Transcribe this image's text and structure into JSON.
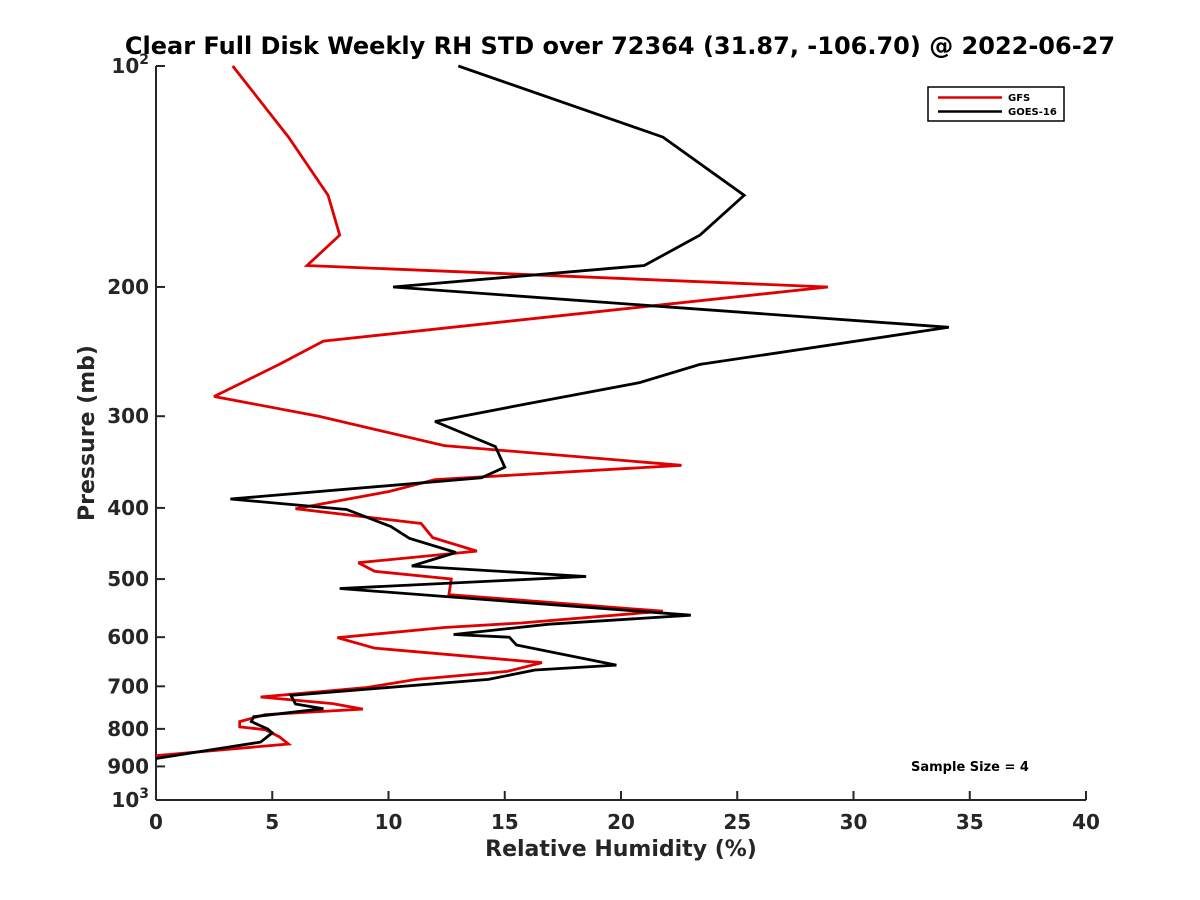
{
  "chart_data": {
    "type": "line",
    "title": "Clear Full Disk Weekly RH STD over 72364 (31.87, -106.70) @ 2022-06-27",
    "xlabel": "Relative Humidity (%)",
    "ylabel": "Pressure (mb)",
    "xlim": [
      0,
      40
    ],
    "ylim": [
      100,
      1000
    ],
    "y_scale": "log",
    "y_reversed": true,
    "grid": false,
    "legend_position": "top-right",
    "x_ticks": [
      "0",
      "5",
      "10",
      "15",
      "20",
      "25",
      "30",
      "35",
      "40"
    ],
    "y_ticks": [
      {
        "value": 100,
        "base": "10",
        "exp": "2"
      },
      {
        "value": 200,
        "label": "200"
      },
      {
        "value": 300,
        "label": "300"
      },
      {
        "value": 400,
        "label": "400"
      },
      {
        "value": 500,
        "label": "500"
      },
      {
        "value": 600,
        "label": "600"
      },
      {
        "value": 700,
        "label": "700"
      },
      {
        "value": 800,
        "label": "800"
      },
      {
        "value": 900,
        "label": "900"
      },
      {
        "value": 1000,
        "base": "10",
        "exp": "3"
      }
    ],
    "annotation": "Sample Size = 4",
    "series": [
      {
        "name": "GFS",
        "color": "#e00000",
        "points": [
          [
            3.3,
            100
          ],
          [
            5.7,
            125
          ],
          [
            7.4,
            150
          ],
          [
            7.9,
            170
          ],
          [
            6.5,
            187
          ],
          [
            28.9,
            200
          ],
          [
            7.2,
            237
          ],
          [
            5.3,
            255
          ],
          [
            2.5,
            282
          ],
          [
            7.0,
            300
          ],
          [
            12.4,
            329
          ],
          [
            22.6,
            350
          ],
          [
            12.0,
            366
          ],
          [
            10.0,
            380
          ],
          [
            6.0,
            401
          ],
          [
            11.4,
            420
          ],
          [
            11.9,
            439
          ],
          [
            13.8,
            458
          ],
          [
            8.7,
            475
          ],
          [
            9.4,
            488
          ],
          [
            12.7,
            500
          ],
          [
            12.6,
            525
          ],
          [
            21.8,
            553
          ],
          [
            15.7,
            574
          ],
          [
            12.4,
            582
          ],
          [
            7.8,
            601
          ],
          [
            9.4,
            621
          ],
          [
            16.6,
            650
          ],
          [
            15.1,
            668
          ],
          [
            11.2,
            685
          ],
          [
            9.0,
            703
          ],
          [
            4.5,
            724
          ],
          [
            7.6,
            739
          ],
          [
            8.9,
            752
          ],
          [
            4.7,
            765
          ],
          [
            3.6,
            782
          ],
          [
            3.6,
            795
          ],
          [
            4.7,
            802
          ],
          [
            5.3,
            820
          ],
          [
            5.7,
            839
          ],
          [
            0.0,
            870
          ]
        ]
      },
      {
        "name": "GOES-16",
        "color": "#000000",
        "points": [
          [
            13.0,
            100
          ],
          [
            21.8,
            125
          ],
          [
            25.3,
            150
          ],
          [
            23.4,
            170
          ],
          [
            21.0,
            187
          ],
          [
            10.2,
            200
          ],
          [
            34.1,
            227
          ],
          [
            23.4,
            255
          ],
          [
            20.8,
            270
          ],
          [
            15.6,
            290
          ],
          [
            12.0,
            305
          ],
          [
            14.6,
            330
          ],
          [
            15.0,
            352
          ],
          [
            14.0,
            364
          ],
          [
            3.2,
            389
          ],
          [
            8.2,
            402
          ],
          [
            10.1,
            424
          ],
          [
            10.9,
            440
          ],
          [
            12.9,
            460
          ],
          [
            11.0,
            480
          ],
          [
            18.5,
            496
          ],
          [
            7.9,
            515
          ],
          [
            23.0,
            560
          ],
          [
            16.9,
            576
          ],
          [
            12.8,
            595
          ],
          [
            15.2,
            600
          ],
          [
            15.5,
            615
          ],
          [
            19.8,
            655
          ],
          [
            16.3,
            665
          ],
          [
            14.3,
            685
          ],
          [
            5.8,
            720
          ],
          [
            6.0,
            740
          ],
          [
            7.2,
            751
          ],
          [
            4.2,
            770
          ],
          [
            4.1,
            782
          ],
          [
            4.8,
            800
          ],
          [
            5.0,
            810
          ],
          [
            4.5,
            834
          ],
          [
            0.0,
            878
          ]
        ]
      }
    ]
  }
}
